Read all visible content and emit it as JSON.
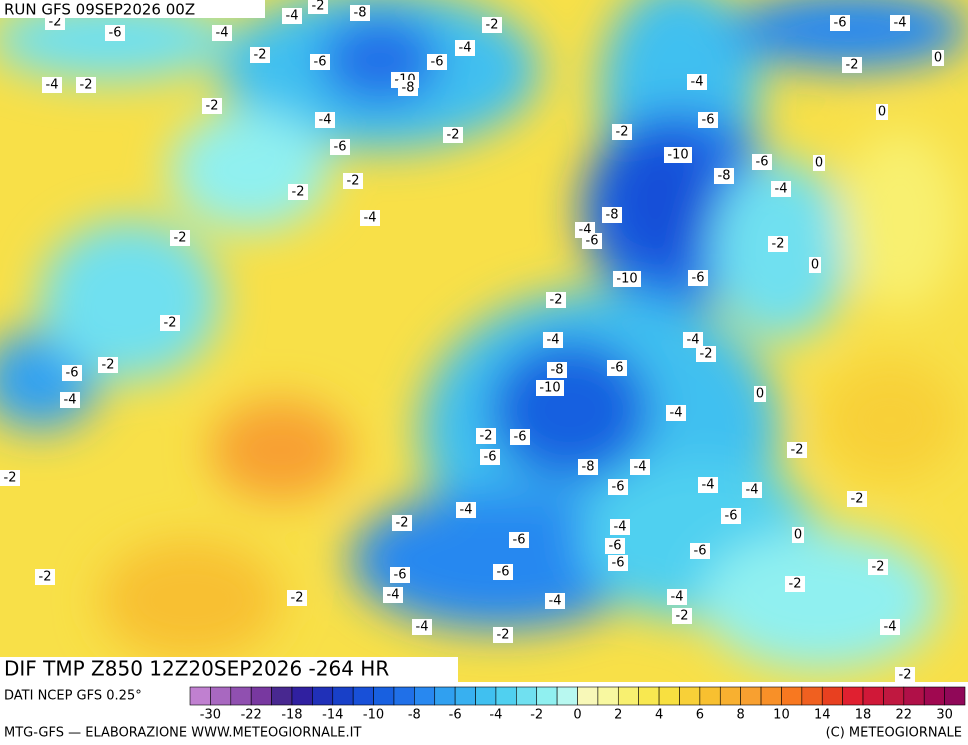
{
  "header": {
    "run": "RUN GFS 09SEP2026 00Z"
  },
  "map": {
    "title": "DIF TMP Z850 12Z20SEP2026 -264 HR",
    "contour_labels": [
      -2,
      -6,
      -4,
      -4,
      -2,
      -8,
      -2,
      -4,
      -6,
      -2,
      -6,
      -10,
      -8,
      -4,
      -2,
      -2,
      -4,
      -6,
      -2,
      -2,
      -2,
      -4,
      -2,
      -2,
      -6,
      -2,
      -4,
      -2,
      -2,
      -2,
      -4,
      -4,
      -6,
      -6,
      -6,
      -4,
      -2,
      -6,
      -2,
      -6,
      -10,
      -8,
      -4,
      -2,
      -6,
      -8,
      -6,
      -4,
      -4,
      -6,
      -6,
      -4,
      -2,
      -4,
      -4,
      -2,
      -4,
      -6,
      -4,
      -6,
      -4,
      -2,
      0,
      -2,
      -2,
      -2,
      0,
      -8,
      -4,
      -6,
      -10,
      -6,
      -2,
      0,
      -10,
      -8,
      -6,
      -4,
      0,
      -6,
      -2,
      -4,
      -2,
      0,
      0,
      -6,
      -4,
      -2,
      -4,
      -2
    ]
  },
  "legend": {
    "source": "DATI NCEP GFS 0.25°",
    "colors": [
      "#c080d0",
      "#a868c0",
      "#9050b0",
      "#7838a0",
      "#482890",
      "#3020a0",
      "#2030b8",
      "#1840c8",
      "#1850d8",
      "#1860e0",
      "#2070e8",
      "#2888f0",
      "#30a0f0",
      "#38b0f0",
      "#40c0f0",
      "#50d0f0",
      "#70e0f0",
      "#90f0f0",
      "#b8f8f0",
      "#f8f8b8",
      "#f8f8a0",
      "#f8f070",
      "#f8e850",
      "#f8e040",
      "#f8d038",
      "#f8c030",
      "#f8b030",
      "#f8a030",
      "#f89028",
      "#f87820",
      "#f06020",
      "#e84020",
      "#e02030",
      "#d01838",
      "#c01840",
      "#b01048",
      "#a00850",
      "#900858"
    ],
    "labels": [
      -30,
      -22,
      -18,
      -14,
      -10,
      -8,
      -6,
      -4,
      -2,
      0,
      2,
      4,
      6,
      8,
      10,
      14,
      18,
      22,
      30
    ]
  },
  "footer": {
    "left": "MTG-GFS — ELABORAZIONE WWW.METEOGIORNALE.IT",
    "right": "(C) METEOGIORNALE"
  }
}
